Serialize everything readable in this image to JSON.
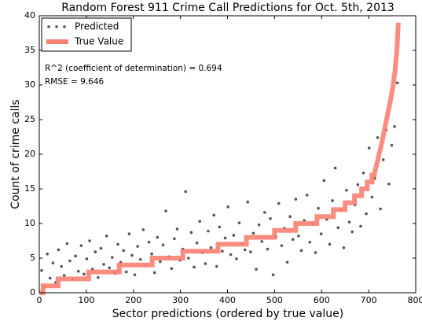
{
  "chart_data": {
    "type": "scatter",
    "title": "Random Forest 911 Crime Call Predictions for Oct. 5th, 2013",
    "x_label": "Sector predictions (ordered by true value)",
    "y_label": "Count of crime calls",
    "annotations": [
      "R^2 (coefficient of determination) = 0.694",
      "RMSE = 9.646"
    ],
    "xlim": [
      0,
      800
    ],
    "xticks": [
      0,
      100,
      200,
      300,
      400,
      500,
      600,
      700,
      800
    ],
    "ylim": [
      0,
      40
    ],
    "yticks": [
      0,
      5,
      10,
      15,
      20,
      25,
      30,
      35,
      40
    ],
    "legend": "upper left",
    "series": [
      {
        "name": "Predicted",
        "type": "scatter",
        "color": "#555555",
        "x": [
          5,
          11,
          17,
          23,
          29,
          35,
          41,
          47,
          53,
          59,
          65,
          71,
          77,
          83,
          89,
          95,
          101,
          107,
          113,
          119,
          125,
          131,
          137,
          143,
          149,
          155,
          161,
          167,
          173,
          179,
          185,
          191,
          197,
          203,
          209,
          215,
          221,
          227,
          233,
          239,
          245,
          251,
          257,
          263,
          269,
          275,
          281,
          287,
          293,
          299,
          305,
          311,
          317,
          323,
          329,
          335,
          341,
          347,
          353,
          359,
          365,
          371,
          377,
          383,
          389,
          395,
          401,
          407,
          413,
          419,
          425,
          431,
          437,
          443,
          449,
          455,
          461,
          467,
          473,
          479,
          485,
          491,
          497,
          503,
          509,
          515,
          521,
          527,
          533,
          539,
          545,
          551,
          557,
          563,
          569,
          575,
          581,
          587,
          593,
          599,
          605,
          611,
          617,
          623,
          629,
          635,
          641,
          647,
          653,
          659,
          665,
          671,
          677,
          683,
          689,
          695,
          701,
          707,
          713,
          719,
          725,
          731,
          737,
          743,
          749,
          755,
          761
        ],
        "values": [
          3.2,
          0.8,
          5.6,
          2.1,
          4.3,
          1.5,
          6.2,
          3.8,
          2.5,
          7.1,
          4.6,
          1.9,
          5.3,
          3.1,
          6.8,
          2.7,
          4.9,
          7.5,
          3.4,
          5.9,
          2.2,
          6.4,
          4.1,
          8.2,
          3.6,
          5.1,
          2.8,
          7.0,
          4.4,
          6.1,
          3.0,
          8.5,
          5.4,
          2.6,
          6.7,
          4.8,
          9.1,
          3.9,
          7.3,
          5.6,
          2.9,
          8.0,
          4.5,
          6.9,
          11.8,
          5.2,
          3.5,
          7.8,
          9.2,
          4.7,
          6.3,
          14.6,
          5.0,
          8.7,
          3.7,
          7.2,
          10.3,
          5.8,
          4.2,
          8.9,
          6.5,
          11.2,
          3.8,
          9.5,
          6.0,
          7.9,
          12.4,
          5.5,
          8.3,
          4.9,
          10.1,
          7.1,
          6.2,
          13.1,
          5.9,
          8.6,
          3.4,
          9.8,
          7.4,
          11.6,
          6.3,
          10.7,
          2.6,
          8.1,
          12.9,
          6.8,
          9.3,
          4.4,
          11.0,
          7.7,
          13.5,
          8.2,
          6.1,
          10.4,
          14.1,
          7.3,
          9.9,
          5.8,
          12.2,
          8.5,
          16.2,
          10.6,
          7.0,
          13.3,
          18.0,
          9.4,
          11.9,
          6.5,
          14.8,
          10.2,
          8.8,
          12.7,
          15.6,
          9.6,
          17.3,
          11.4,
          20.9,
          13.8,
          16.5,
          22.4,
          12.1,
          19.2,
          23.5,
          15.7,
          21.3,
          24.0,
          30.3
        ]
      },
      {
        "name": "True Value",
        "type": "line",
        "color": "#fa8072",
        "x": [
          0,
          8,
          8,
          40,
          40,
          105,
          105,
          170,
          170,
          240,
          240,
          305,
          305,
          380,
          380,
          440,
          440,
          500,
          500,
          545,
          545,
          590,
          590,
          625,
          625,
          650,
          650,
          670,
          670,
          685,
          685,
          697,
          697,
          707,
          707,
          712,
          715,
          719,
          722,
          726,
          729,
          732,
          735,
          738,
          741,
          744,
          747,
          752,
          756,
          760,
          763
        ],
        "values": [
          0,
          0,
          1,
          1,
          2,
          2,
          3,
          3,
          4,
          4,
          5,
          5,
          6,
          6,
          7,
          7,
          8,
          8,
          9,
          9,
          10,
          10,
          11,
          11,
          12,
          12,
          13,
          13,
          14,
          14,
          15,
          15,
          16,
          16,
          17,
          17,
          18,
          19,
          20,
          21,
          22,
          23,
          24,
          25,
          26,
          27,
          28,
          30,
          32,
          35,
          39
        ]
      }
    ]
  }
}
